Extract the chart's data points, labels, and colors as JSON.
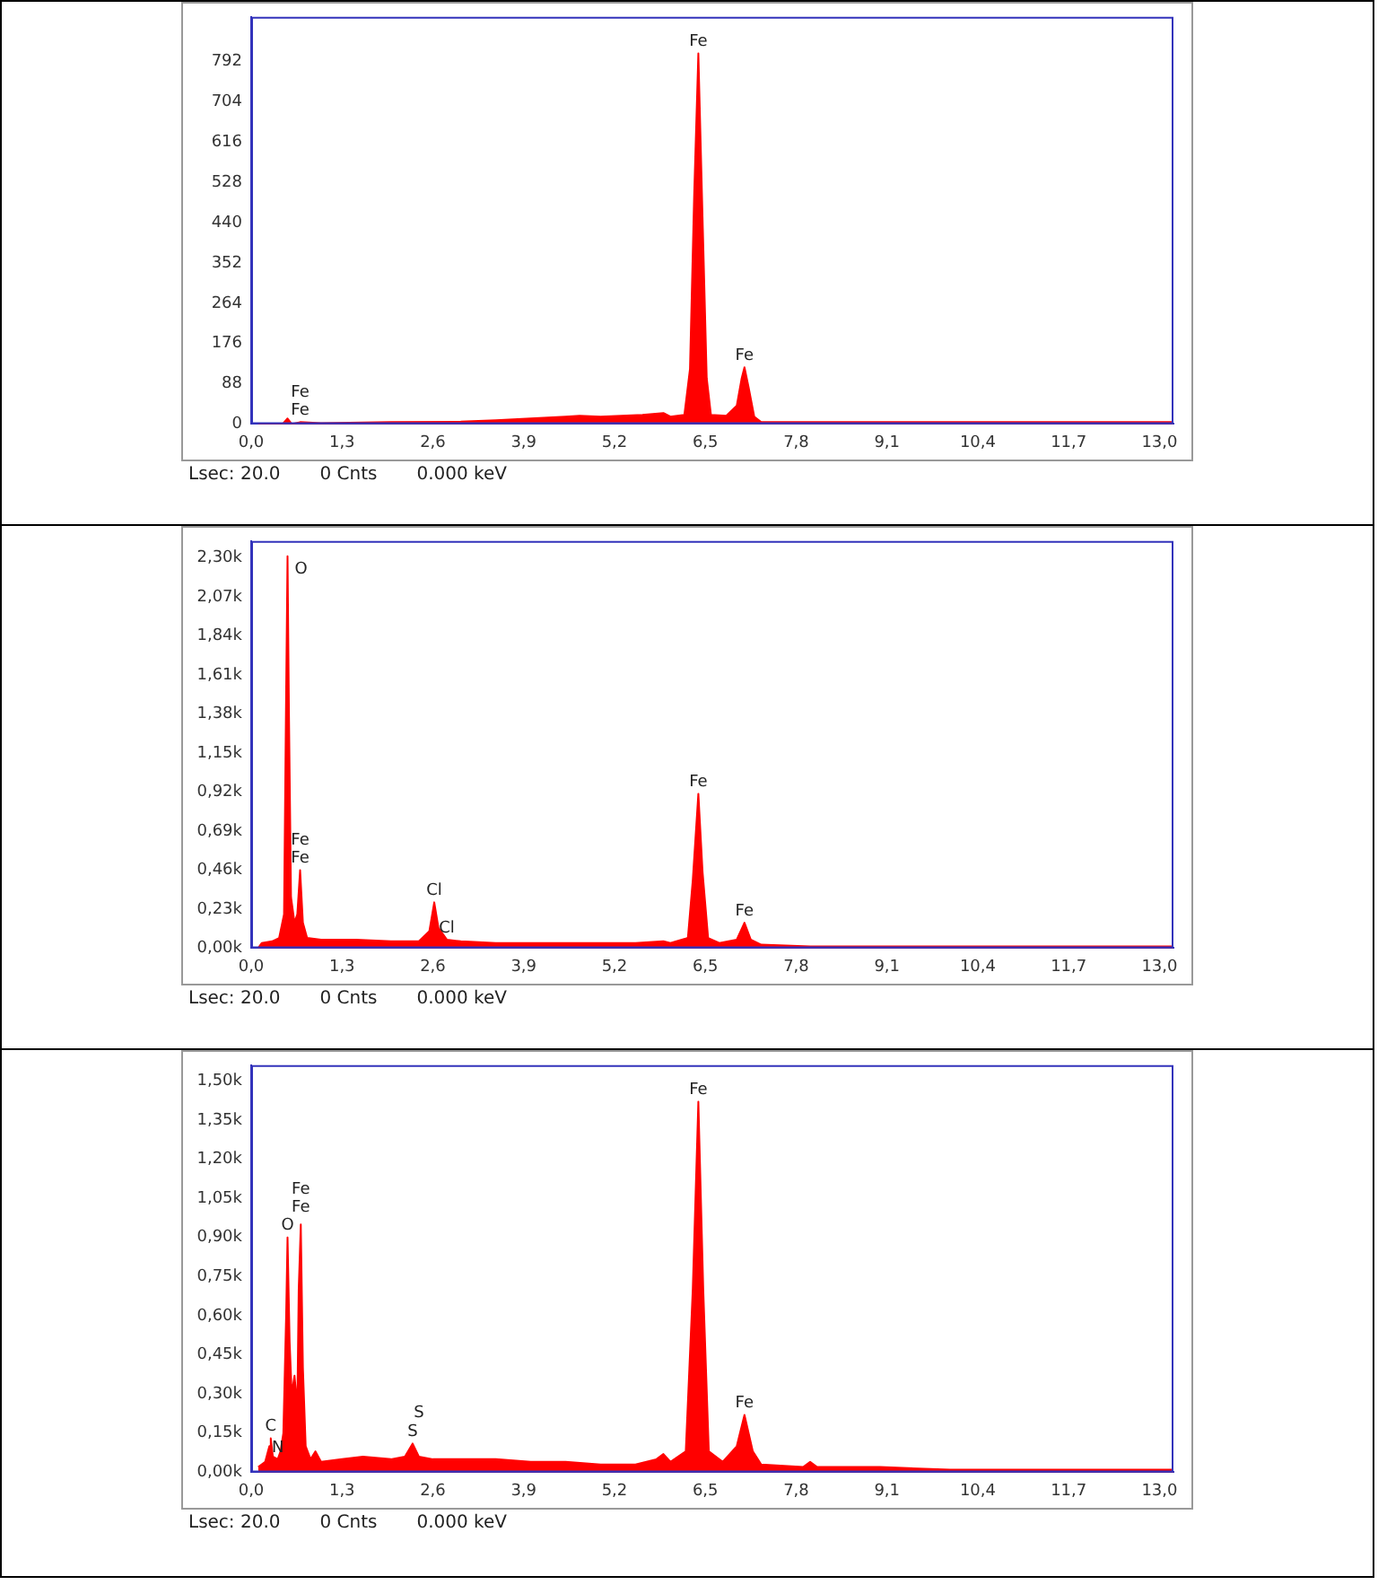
{
  "chart_data": [
    {
      "type": "area",
      "color": "#ff0000",
      "marker": "none",
      "grid": false,
      "legend": false,
      "x": [
        0.1,
        0.45,
        0.52,
        0.58,
        0.7,
        1.0,
        2.0,
        3.0,
        3.5,
        4.0,
        4.5,
        4.7,
        5.0,
        5.3,
        5.6,
        5.9,
        6.0,
        6.2,
        6.28,
        6.34,
        6.4,
        6.46,
        6.52,
        6.58,
        6.8,
        6.95,
        7.02,
        7.06,
        7.12,
        7.2,
        7.3,
        8.0,
        9.0,
        10.0,
        11.0,
        12.0,
        13.0,
        13.2
      ],
      "values": [
        0,
        0,
        12,
        0,
        4,
        2,
        4,
        5,
        8,
        12,
        16,
        18,
        16,
        18,
        20,
        24,
        16,
        20,
        120,
        500,
        810,
        450,
        100,
        20,
        18,
        40,
        100,
        124,
        80,
        16,
        4,
        4,
        4,
        4,
        4,
        4,
        4,
        4
      ],
      "xlim": [
        0,
        13.2
      ],
      "xticks": [
        {
          "value": 0,
          "label": "0,0"
        },
        {
          "value": 1.3,
          "label": "1,3"
        },
        {
          "value": 2.6,
          "label": "2,6"
        },
        {
          "value": 3.9,
          "label": "3,9"
        },
        {
          "value": 5.2,
          "label": "5,2"
        },
        {
          "value": 6.5,
          "label": "6,5"
        },
        {
          "value": 7.8,
          "label": "7,8"
        },
        {
          "value": 9.1,
          "label": "9,1"
        },
        {
          "value": 10.4,
          "label": "10,4"
        },
        {
          "value": 11.7,
          "label": "11,7"
        },
        {
          "value": 13,
          "label": "13,0"
        }
      ],
      "ylim": [
        0,
        890
      ],
      "yticks": [
        0,
        88,
        176,
        264,
        352,
        440,
        528,
        616,
        704,
        792
      ],
      "annotations": [
        {
          "text": "Fe",
          "x": 6.4,
          "y": 810
        },
        {
          "text": "Fe",
          "x": 7.06,
          "y": 124
        },
        {
          "text": "Fe",
          "x": 0.7,
          "y": 4
        },
        {
          "text": "Fe",
          "x": 0.7,
          "y": 4
        },
        "Lsec: 20.0",
        "0 Cnts",
        "0.000 keV"
      ]
    },
    {
      "type": "area",
      "color": "#ff0000",
      "marker": "none",
      "grid": false,
      "legend": false,
      "x": [
        0.1,
        0.15,
        0.3,
        0.4,
        0.47,
        0.5,
        0.52,
        0.54,
        0.57,
        0.62,
        0.66,
        0.7,
        0.74,
        0.8,
        1.0,
        1.5,
        2.0,
        2.4,
        2.55,
        2.62,
        2.68,
        2.8,
        3.0,
        3.5,
        4.0,
        4.5,
        5.0,
        5.5,
        5.9,
        6.0,
        6.25,
        6.32,
        6.4,
        6.46,
        6.54,
        6.7,
        6.95,
        7.06,
        7.15,
        7.3,
        8.0,
        9.0,
        10.0,
        11.0,
        12.0,
        13.2
      ],
      "values": [
        0,
        30,
        40,
        60,
        200,
        1500,
        2310,
        1400,
        300,
        150,
        200,
        460,
        150,
        60,
        50,
        50,
        40,
        40,
        100,
        270,
        120,
        50,
        40,
        30,
        30,
        30,
        30,
        30,
        40,
        30,
        60,
        400,
        910,
        450,
        60,
        30,
        50,
        150,
        50,
        20,
        10,
        10,
        10,
        10,
        10,
        10
      ],
      "xlim": [
        0,
        13.2
      ],
      "xticks": [
        {
          "value": 0,
          "label": "0,0"
        },
        {
          "value": 1.3,
          "label": "1,3"
        },
        {
          "value": 2.6,
          "label": "2,6"
        },
        {
          "value": 3.9,
          "label": "3,9"
        },
        {
          "value": 5.2,
          "label": "5,2"
        },
        {
          "value": 6.5,
          "label": "6,5"
        },
        {
          "value": 7.8,
          "label": "7,8"
        },
        {
          "value": 9.1,
          "label": "9,1"
        },
        {
          "value": 10.4,
          "label": "10,4"
        },
        {
          "value": 11.7,
          "label": "11,7"
        },
        {
          "value": 13,
          "label": "13,0"
        }
      ],
      "ylim": [
        0,
        2400
      ],
      "yticks": [
        {
          "value": 0,
          "label": "0,00k"
        },
        {
          "value": 230,
          "label": "0,23k"
        },
        {
          "value": 460,
          "label": "0,46k"
        },
        {
          "value": 690,
          "label": "0,69k"
        },
        {
          "value": 920,
          "label": "0,92k"
        },
        {
          "value": 1150,
          "label": "1,15k"
        },
        {
          "value": 1380,
          "label": "1,38k"
        },
        {
          "value": 1610,
          "label": "1,61k"
        },
        {
          "value": 1840,
          "label": "1,84k"
        },
        {
          "value": 2070,
          "label": "2,07k"
        },
        {
          "value": 2300,
          "label": "2,30k"
        }
      ],
      "annotations": [
        {
          "text": "O",
          "x": 0.52,
          "y": 2310
        },
        {
          "text": "Fe",
          "x": 0.7,
          "y": 460
        },
        {
          "text": "Fe",
          "x": 0.7,
          "y": 460
        },
        {
          "text": "Cl",
          "x": 2.62,
          "y": 270
        },
        {
          "text": "Cl",
          "x": 2.8,
          "y": 50
        },
        {
          "text": "Fe",
          "x": 6.4,
          "y": 910
        },
        {
          "text": "Fe",
          "x": 7.06,
          "y": 150
        },
        "Lsec: 20.0",
        "0 Cnts",
        "0.000 keV"
      ]
    },
    {
      "type": "area",
      "color": "#ff0000",
      "marker": "none",
      "grid": false,
      "legend": false,
      "x": [
        0.1,
        0.2,
        0.26,
        0.28,
        0.31,
        0.38,
        0.42,
        0.46,
        0.5,
        0.52,
        0.55,
        0.58,
        0.62,
        0.66,
        0.68,
        0.71,
        0.74,
        0.78,
        0.85,
        0.92,
        1.0,
        1.3,
        1.6,
        2.0,
        2.2,
        2.31,
        2.4,
        2.6,
        3.0,
        3.5,
        4.0,
        4.5,
        5.0,
        5.5,
        5.8,
        5.9,
        6.0,
        6.22,
        6.32,
        6.4,
        6.47,
        6.55,
        6.75,
        6.95,
        7.06,
        7.18,
        7.3,
        7.9,
        8.0,
        8.1,
        9.0,
        10.0,
        11.0,
        12.0,
        13.2
      ],
      "values": [
        20,
        40,
        100,
        130,
        60,
        50,
        80,
        150,
        600,
        900,
        500,
        300,
        370,
        250,
        700,
        950,
        400,
        100,
        50,
        80,
        40,
        50,
        60,
        50,
        60,
        110,
        60,
        50,
        50,
        50,
        40,
        40,
        30,
        30,
        50,
        70,
        40,
        80,
        700,
        1420,
        700,
        80,
        40,
        100,
        220,
        80,
        30,
        20,
        40,
        20,
        20,
        10,
        10,
        10,
        10
      ],
      "xlim": [
        0,
        13.2
      ],
      "xticks": [
        {
          "value": 0,
          "label": "0,0"
        },
        {
          "value": 1.3,
          "label": "1,3"
        },
        {
          "value": 2.6,
          "label": "2,6"
        },
        {
          "value": 3.9,
          "label": "3,9"
        },
        {
          "value": 5.2,
          "label": "5,2"
        },
        {
          "value": 6.5,
          "label": "6,5"
        },
        {
          "value": 7.8,
          "label": "7,8"
        },
        {
          "value": 9.1,
          "label": "9,1"
        },
        {
          "value": 10.4,
          "label": "10,4"
        },
        {
          "value": 11.7,
          "label": "11,7"
        },
        {
          "value": 13,
          "label": "13,0"
        }
      ],
      "ylim": [
        0,
        1560
      ],
      "yticks": [
        {
          "value": 0,
          "label": "0,00k"
        },
        {
          "value": 150,
          "label": "0,15k"
        },
        {
          "value": 300,
          "label": "0,30k"
        },
        {
          "value": 450,
          "label": "0,45k"
        },
        {
          "value": 600,
          "label": "0,60k"
        },
        {
          "value": 750,
          "label": "0,75k"
        },
        {
          "value": 900,
          "label": "0,90k"
        },
        {
          "value": 1050,
          "label": "1,05k"
        },
        {
          "value": 1200,
          "label": "1,20k"
        },
        {
          "value": 1350,
          "label": "1,35k"
        },
        {
          "value": 1500,
          "label": "1,50k"
        }
      ],
      "annotations": [
        {
          "text": "O",
          "x": 0.52,
          "y": 900
        },
        {
          "text": "Fe",
          "x": 0.71,
          "y": 950
        },
        {
          "text": "Fe",
          "x": 0.71,
          "y": 950
        },
        {
          "text": "C",
          "x": 0.28,
          "y": 130
        },
        {
          "text": "N",
          "x": 0.38,
          "y": 50
        },
        {
          "text": "S",
          "x": 2.31,
          "y": 110
        },
        {
          "text": "S",
          "x": 2.4,
          "y": 60
        },
        {
          "text": "Fe",
          "x": 6.4,
          "y": 1420
        },
        {
          "text": "Fe",
          "x": 7.06,
          "y": 220
        },
        "Lsec: 20.0",
        "0 Cnts",
        "0.000 keV"
      ]
    }
  ]
}
